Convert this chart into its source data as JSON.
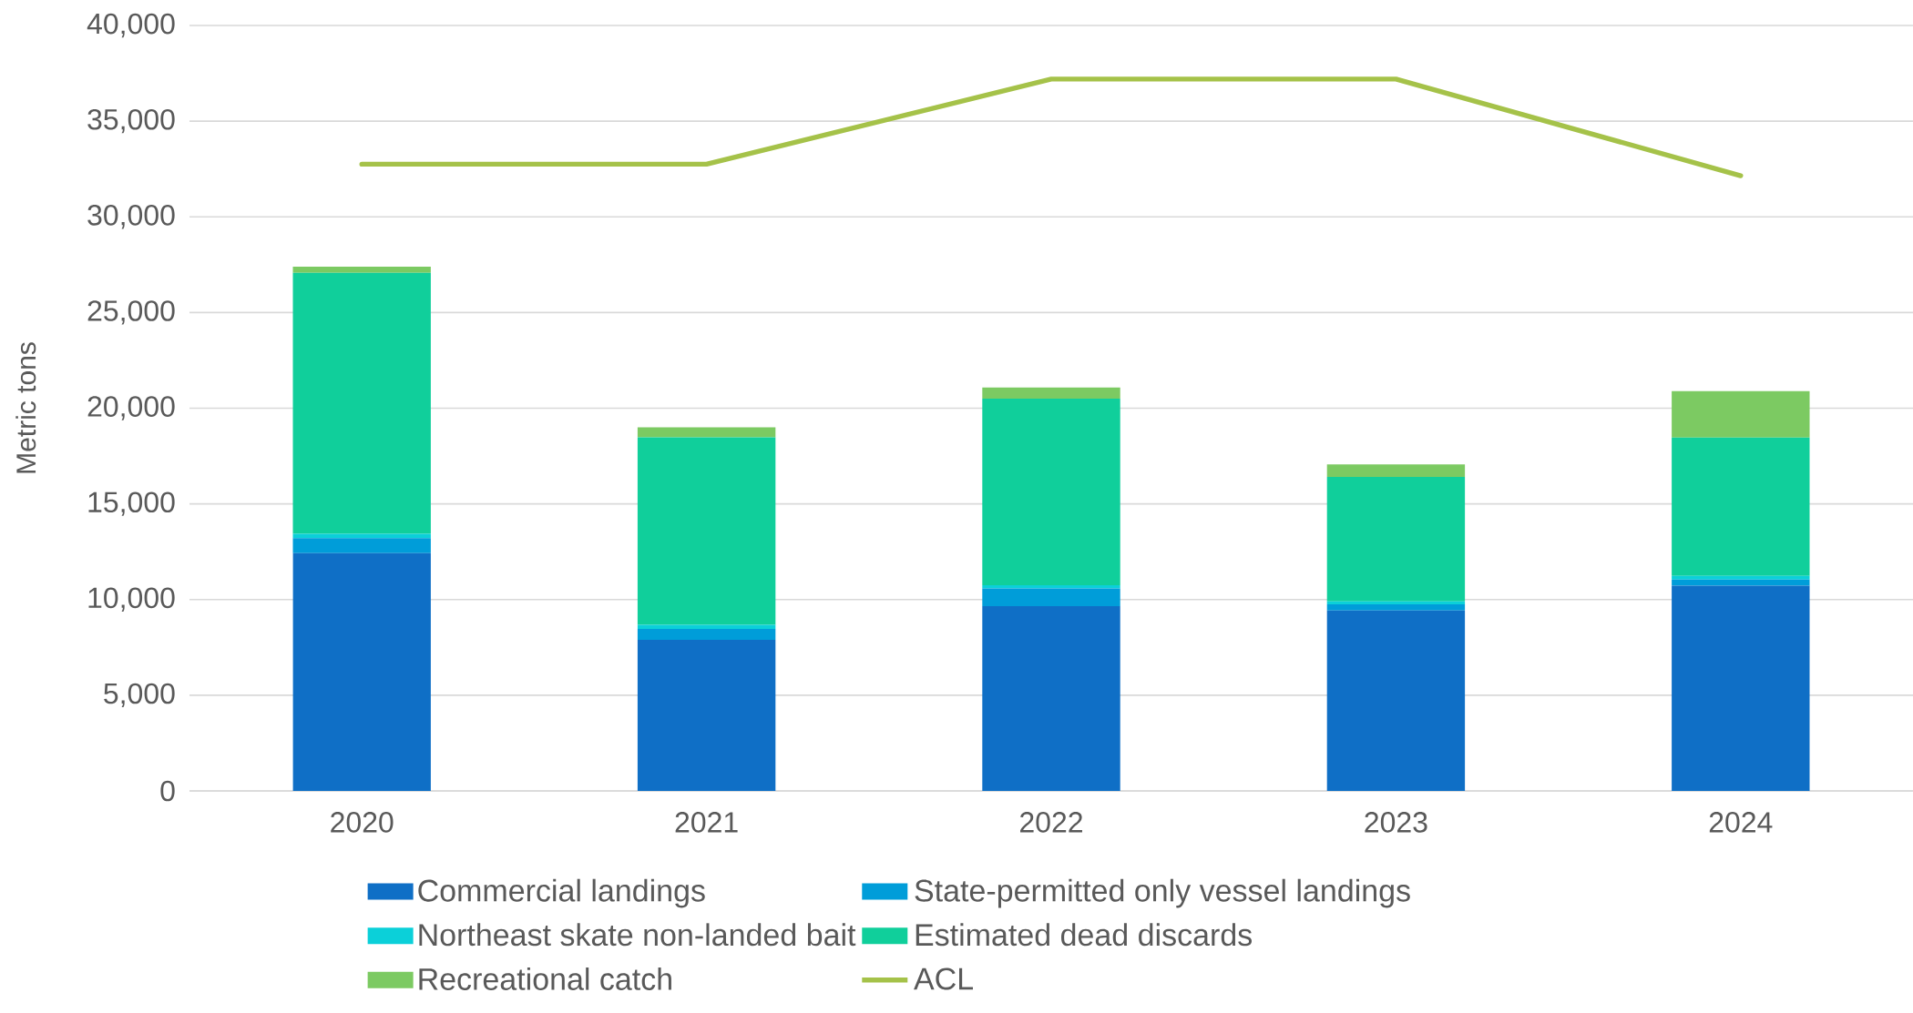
{
  "chart_data": {
    "type": "bar",
    "stacked": true,
    "ylabel": "Metric tons",
    "categories": [
      "2020",
      "2021",
      "2022",
      "2023",
      "2024"
    ],
    "series": [
      {
        "name": "Commercial landings",
        "color": "#0f6fc6",
        "values": [
          12430,
          7900,
          9660,
          9430,
          10730
        ]
      },
      {
        "name": "State-permitted only vessel landings",
        "color": "#009dd9",
        "values": [
          780,
          560,
          920,
          320,
          310
        ]
      },
      {
        "name": "Northeast skate non-landed bait",
        "color": "#0bd0d9",
        "values": [
          230,
          220,
          170,
          160,
          200
        ]
      },
      {
        "name": "Estimated dead discards",
        "color": "#10cf9b",
        "values": [
          13630,
          9800,
          9750,
          6500,
          7230
        ]
      },
      {
        "name": "Recreational catch",
        "color": "#7cca62",
        "values": [
          320,
          520,
          580,
          650,
          2420
        ]
      },
      {
        "name": "ACL",
        "type": "line",
        "color": "#a5c249",
        "values": [
          32750,
          32750,
          37200,
          37200,
          32150
        ]
      }
    ],
    "ylim": [
      0,
      40000
    ],
    "yticks": [
      {
        "value": 0,
        "label": "0"
      },
      {
        "value": 5000,
        "label": "5,000"
      },
      {
        "value": 10000,
        "label": "10,000"
      },
      {
        "value": 15000,
        "label": "15,000"
      },
      {
        "value": 20000,
        "label": "20,000"
      },
      {
        "value": 25000,
        "label": "25,000"
      },
      {
        "value": 30000,
        "label": "30,000"
      },
      {
        "value": 35000,
        "label": "35,000"
      },
      {
        "value": 40000,
        "label": "40,000"
      }
    ],
    "grid": true,
    "legend": "bottom"
  }
}
